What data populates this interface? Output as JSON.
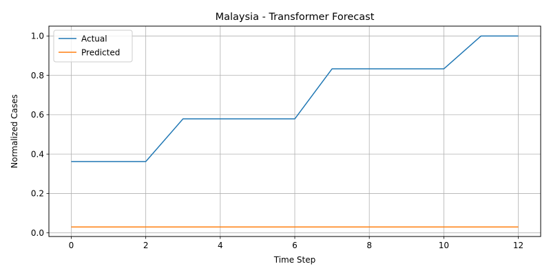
{
  "chart_data": {
    "type": "line",
    "title": "Malaysia - Transformer Forecast",
    "xlabel": "Time Step",
    "ylabel": "Normalized Cases",
    "x": [
      0,
      1,
      2,
      3,
      4,
      5,
      6,
      7,
      8,
      9,
      10,
      11,
      12
    ],
    "xlim": [
      -0.6,
      12.6
    ],
    "ylim": [
      -0.0185,
      1.05
    ],
    "xticks": [
      0,
      2,
      4,
      6,
      8,
      10,
      12
    ],
    "yticks": [
      0.0,
      0.2,
      0.4,
      0.6,
      0.8,
      1.0
    ],
    "grid": true,
    "legend_position": "top-left",
    "series": [
      {
        "name": "Actual",
        "color": "#1f77b4",
        "values": [
          0.362,
          0.362,
          0.362,
          0.579,
          0.579,
          0.579,
          0.579,
          0.833,
          0.833,
          0.833,
          0.833,
          1.0,
          1.0
        ]
      },
      {
        "name": "Predicted",
        "color": "#ff7f0e",
        "values": [
          0.03,
          0.03,
          0.03,
          0.03,
          0.03,
          0.03,
          0.03,
          0.03,
          0.03,
          0.03,
          0.03,
          0.03,
          0.03
        ]
      }
    ]
  }
}
